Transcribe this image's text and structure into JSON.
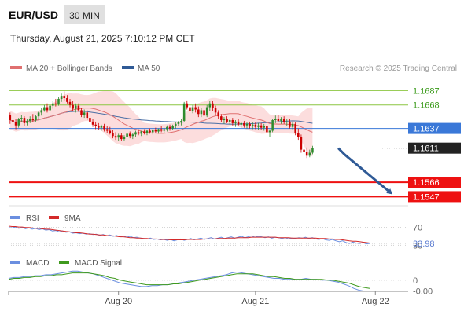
{
  "header": {
    "symbol": "EUR/USD",
    "timeframe": "30 MIN",
    "datetime": "Thursday, August 21, 2025 7:10:12 PM CET"
  },
  "legend": {
    "ma20_bb": "MA 20 + Bollinger Bands",
    "ma50": "MA 50",
    "credit": "Research © 2025 Trading Central"
  },
  "rsi_legend": {
    "rsi": "RSI",
    "ma9": "9MA"
  },
  "macd_legend": {
    "macd": "MACD",
    "signal": "MACD Signal"
  },
  "colors": {
    "up": "#2e8b2e",
    "down": "#cc0000",
    "ma20": "#e07070",
    "ma50": "#4a6fa5",
    "bb_fill": "#fbd5d5",
    "support": "#ee1111",
    "resistance": "#8cc640",
    "pivot": "#3a78d8",
    "current": "#222222",
    "arrow": "#2f5a96",
    "rsi": "#6b8fe0",
    "rsi_ma": "#d42a2a",
    "macd": "#6b8fe0",
    "macd_signal": "#3f9a1e"
  },
  "chart_data": [
    {
      "type": "candlestick",
      "title": "EUR/USD",
      "ylim": [
        1.1535,
        1.1705
      ],
      "x_ticks": [
        {
          "label": "Aug 20",
          "index": 38
        },
        {
          "label": "Aug 21",
          "index": 86
        },
        {
          "label": "Aug 22",
          "index": 128
        }
      ],
      "n_slots": 140,
      "candles": [
        [
          1.1655,
          1.1658,
          1.1643,
          1.1648
        ],
        [
          1.1648,
          1.1654,
          1.164,
          1.1645
        ],
        [
          1.1645,
          1.165,
          1.1636,
          1.1641
        ],
        [
          1.1641,
          1.1651,
          1.1638,
          1.1649
        ],
        [
          1.1649,
          1.1655,
          1.1645,
          1.1651
        ],
        [
          1.1651,
          1.1653,
          1.164,
          1.1644
        ],
        [
          1.1644,
          1.165,
          1.1641,
          1.1647
        ],
        [
          1.1647,
          1.1653,
          1.1644,
          1.165
        ],
        [
          1.165,
          1.1656,
          1.1645,
          1.1648
        ],
        [
          1.1648,
          1.1655,
          1.1646,
          1.1653
        ],
        [
          1.1653,
          1.166,
          1.165,
          1.1658
        ],
        [
          1.1658,
          1.1664,
          1.1654,
          1.1661
        ],
        [
          1.1661,
          1.1668,
          1.1659,
          1.1665
        ],
        [
          1.1665,
          1.167,
          1.1658,
          1.1661
        ],
        [
          1.1661,
          1.1668,
          1.166,
          1.1667
        ],
        [
          1.1667,
          1.1673,
          1.1663,
          1.167
        ],
        [
          1.167,
          1.1676,
          1.1666,
          1.1669
        ],
        [
          1.1669,
          1.1679,
          1.1667,
          1.1676
        ],
        [
          1.1676,
          1.1683,
          1.1672,
          1.168
        ],
        [
          1.168,
          1.1686,
          1.1674,
          1.1677
        ],
        [
          1.1677,
          1.1681,
          1.167,
          1.1672
        ],
        [
          1.1672,
          1.1676,
          1.1665,
          1.1668
        ],
        [
          1.1668,
          1.1673,
          1.166,
          1.1663
        ],
        [
          1.1663,
          1.167,
          1.1658,
          1.1667
        ],
        [
          1.1667,
          1.167,
          1.1659,
          1.1661
        ],
        [
          1.1661,
          1.1664,
          1.1652,
          1.1655
        ],
        [
          1.1655,
          1.1662,
          1.1651,
          1.1658
        ],
        [
          1.1658,
          1.1661,
          1.1648,
          1.1651
        ],
        [
          1.1651,
          1.1655,
          1.1643,
          1.1646
        ],
        [
          1.1646,
          1.165,
          1.1639,
          1.1642
        ],
        [
          1.1642,
          1.1646,
          1.1636,
          1.164
        ],
        [
          1.164,
          1.1644,
          1.1635,
          1.1638
        ],
        [
          1.1638,
          1.1642,
          1.1634,
          1.164
        ],
        [
          1.164,
          1.1643,
          1.1633,
          1.1636
        ],
        [
          1.1636,
          1.164,
          1.1631,
          1.1634
        ],
        [
          1.1634,
          1.1639,
          1.1629,
          1.1631
        ],
        [
          1.1631,
          1.1635,
          1.1624,
          1.1627
        ],
        [
          1.1627,
          1.1632,
          1.1622,
          1.1625
        ],
        [
          1.1625,
          1.163,
          1.162,
          1.1628
        ],
        [
          1.1628,
          1.1631,
          1.1621,
          1.1623
        ],
        [
          1.1623,
          1.1628,
          1.162,
          1.1626
        ],
        [
          1.1626,
          1.1632,
          1.1624,
          1.163
        ],
        [
          1.163,
          1.1633,
          1.1624,
          1.1627
        ],
        [
          1.1627,
          1.1631,
          1.1623,
          1.1629
        ],
        [
          1.1629,
          1.1634,
          1.1626,
          1.1632
        ],
        [
          1.1632,
          1.1636,
          1.1628,
          1.163
        ],
        [
          1.163,
          1.1634,
          1.1627,
          1.1633
        ],
        [
          1.1633,
          1.1636,
          1.1629,
          1.1631
        ],
        [
          1.1631,
          1.1635,
          1.1628,
          1.1634
        ],
        [
          1.1634,
          1.1637,
          1.163,
          1.1632
        ],
        [
          1.1632,
          1.1636,
          1.1629,
          1.1635
        ],
        [
          1.1635,
          1.1638,
          1.1631,
          1.1633
        ],
        [
          1.1633,
          1.1637,
          1.163,
          1.1636
        ],
        [
          1.1636,
          1.164,
          1.1632,
          1.1634
        ],
        [
          1.1634,
          1.1638,
          1.1631,
          1.1636
        ],
        [
          1.1636,
          1.1641,
          1.1633,
          1.1639
        ],
        [
          1.1639,
          1.1642,
          1.1634,
          1.1637
        ],
        [
          1.1637,
          1.1642,
          1.1635,
          1.164
        ],
        [
          1.164,
          1.1645,
          1.1637,
          1.1643
        ],
        [
          1.1643,
          1.1647,
          1.164,
          1.1645
        ],
        [
          1.1645,
          1.165,
          1.1641,
          1.1647
        ],
        [
          1.1647,
          1.1672,
          1.1645,
          1.167
        ],
        [
          1.167,
          1.1674,
          1.1662,
          1.1665
        ],
        [
          1.1665,
          1.1669,
          1.1656,
          1.166
        ],
        [
          1.166,
          1.1668,
          1.1657,
          1.1665
        ],
        [
          1.1665,
          1.167,
          1.1658,
          1.1662
        ],
        [
          1.1662,
          1.1666,
          1.1652,
          1.1656
        ],
        [
          1.1656,
          1.1664,
          1.1652,
          1.1661
        ],
        [
          1.1661,
          1.1665,
          1.165,
          1.1654
        ],
        [
          1.1654,
          1.1668,
          1.1652,
          1.1665
        ],
        [
          1.1665,
          1.1673,
          1.166,
          1.167
        ],
        [
          1.167,
          1.1673,
          1.166,
          1.1664
        ],
        [
          1.1664,
          1.1667,
          1.1654,
          1.1658
        ],
        [
          1.1658,
          1.1661,
          1.165,
          1.1653
        ],
        [
          1.1653,
          1.1656,
          1.1645,
          1.1648
        ],
        [
          1.1648,
          1.1652,
          1.1643,
          1.165
        ],
        [
          1.165,
          1.1653,
          1.1644,
          1.1646
        ],
        [
          1.1646,
          1.165,
          1.1642,
          1.1648
        ],
        [
          1.1648,
          1.1651,
          1.1641,
          1.1644
        ],
        [
          1.1644,
          1.1648,
          1.1639,
          1.1646
        ],
        [
          1.1646,
          1.1649,
          1.164,
          1.1642
        ],
        [
          1.1642,
          1.1646,
          1.1638,
          1.1644
        ],
        [
          1.1644,
          1.1647,
          1.1638,
          1.1641
        ],
        [
          1.1641,
          1.1645,
          1.1637,
          1.1643
        ],
        [
          1.1643,
          1.1646,
          1.1637,
          1.164
        ],
        [
          1.164,
          1.1645,
          1.1636,
          1.1642
        ],
        [
          1.1642,
          1.1645,
          1.1636,
          1.1639
        ],
        [
          1.1639,
          1.1644,
          1.1635,
          1.1641
        ],
        [
          1.1641,
          1.1644,
          1.1635,
          1.1638
        ],
        [
          1.1638,
          1.1643,
          1.1634,
          1.164
        ],
        [
          1.164,
          1.1643,
          1.1629,
          1.1632
        ],
        [
          1.1632,
          1.1636,
          1.1626,
          1.1634
        ],
        [
          1.1634,
          1.165,
          1.1632,
          1.1648
        ],
        [
          1.1648,
          1.1654,
          1.1644,
          1.165
        ],
        [
          1.165,
          1.1655,
          1.1646,
          1.1647
        ],
        [
          1.1647,
          1.1652,
          1.1643,
          1.1649
        ],
        [
          1.1649,
          1.1653,
          1.1643,
          1.1645
        ],
        [
          1.1645,
          1.165,
          1.164,
          1.1646
        ],
        [
          1.1646,
          1.1649,
          1.1637,
          1.1639
        ],
        [
          1.1639,
          1.1646,
          1.1636,
          1.1643
        ],
        [
          1.1643,
          1.1645,
          1.1628,
          1.1631
        ],
        [
          1.1631,
          1.1637,
          1.1622,
          1.1626
        ],
        [
          1.1626,
          1.1629,
          1.1605,
          1.1609
        ],
        [
          1.1609,
          1.1618,
          1.1603,
          1.1606
        ],
        [
          1.1606,
          1.1612,
          1.1598,
          1.1601
        ],
        [
          1.1601,
          1.1609,
          1.1599,
          1.1605
        ],
        [
          1.1605,
          1.1614,
          1.1603,
          1.1611
        ]
      ],
      "levels": [
        {
          "label": "1.1687",
          "value": 1.1687,
          "kind": "resistance"
        },
        {
          "label": "1.1668",
          "value": 1.1668,
          "kind": "resistance"
        },
        {
          "label": "1.1637",
          "value": 1.1637,
          "kind": "pivot"
        },
        {
          "label": "1.1611",
          "value": 1.1611,
          "kind": "current"
        },
        {
          "label": "1.1566",
          "value": 1.1566,
          "kind": "support"
        },
        {
          "label": "1.1547",
          "value": 1.1547,
          "kind": "support"
        }
      ],
      "arrow": {
        "from_index": 115,
        "from_value": 1.1611,
        "to_index": 134,
        "to_value": 1.155
      }
    },
    {
      "type": "line",
      "title": "RSI",
      "ylim": [
        20,
        80
      ],
      "series": [
        {
          "name": "RSI",
          "values": [
            70,
            69,
            71,
            68,
            70,
            67,
            69,
            66,
            68,
            65,
            67,
            64,
            65,
            62,
            63,
            60,
            62,
            59,
            60,
            57,
            58,
            56,
            57,
            55,
            56,
            54,
            55,
            52,
            54,
            51,
            53,
            50,
            52,
            49,
            51,
            48,
            50,
            47,
            48,
            46,
            45,
            44,
            46,
            43,
            44,
            42,
            43,
            41,
            43,
            40,
            42,
            44,
            41,
            43,
            45,
            42,
            44,
            46,
            43,
            45,
            47,
            44,
            46,
            48,
            45,
            47,
            49,
            46,
            48,
            50,
            47,
            49,
            51,
            48,
            50,
            49,
            47,
            49,
            46,
            48,
            47,
            45,
            47,
            44,
            46,
            45,
            47,
            46,
            48,
            45,
            47,
            44,
            43,
            45,
            42,
            41,
            43,
            40,
            38,
            40,
            36,
            34,
            37,
            35,
            34,
            36,
            33,
            34
          ]
        },
        {
          "name": "9MA",
          "values": [
            73,
            72,
            72,
            71,
            71,
            70,
            70,
            69,
            68,
            68,
            67,
            66,
            66,
            65,
            64,
            63,
            62,
            61,
            60,
            59,
            58,
            58,
            57,
            56,
            55,
            55,
            54,
            53,
            53,
            52,
            51,
            51,
            50,
            49,
            49,
            48,
            47,
            47,
            46,
            46,
            45,
            45,
            44,
            44,
            44,
            43,
            43,
            43,
            42,
            42,
            42,
            42,
            42,
            43,
            43,
            43,
            43,
            43,
            44,
            44,
            44,
            44,
            45,
            45,
            45,
            46,
            46,
            46,
            47,
            47,
            47,
            47,
            48,
            48,
            48,
            48,
            48,
            48,
            48,
            48,
            47,
            47,
            47,
            47,
            46,
            46,
            46,
            46,
            46,
            46,
            46,
            46,
            45,
            45,
            45,
            44,
            44,
            43,
            43,
            42,
            41,
            40,
            39,
            39,
            38,
            37,
            36,
            35
          ]
        }
      ],
      "levels": [
        {
          "label": "70",
          "value": 70
        },
        {
          "label": "30",
          "value": 30
        },
        {
          "label": "33.98",
          "value": 33.98
        }
      ]
    },
    {
      "type": "line",
      "title": "MACD",
      "ylim": [
        -0.0014,
        0.0012
      ],
      "series": [
        {
          "name": "MACD",
          "values": [
            0.0002,
            0.0003,
            0.0003,
            0.0004,
            0.0004,
            0.0005,
            0.0005,
            0.0006,
            0.0006,
            0.0007,
            0.0008,
            0.0009,
            0.001,
            0.001,
            0.0009,
            0.0008,
            0.0007,
            0.0005,
            0.0003,
            0.0001,
            -0.0001,
            -0.0003,
            -0.0004,
            -0.0005,
            -0.0006,
            -0.0007,
            -0.0007,
            -0.0006,
            -0.0006,
            -0.0005,
            -0.0005,
            -0.0004,
            -0.0003,
            -0.0002,
            -0.0001,
            0.0,
            0.0001,
            0.0002,
            0.0003,
            0.0004,
            0.0005,
            0.0006,
            0.0008,
            0.0009,
            0.0008,
            0.0007,
            0.0006,
            0.0005,
            0.0004,
            0.0003,
            0.0002,
            0.0002,
            0.0001,
            0.0001,
            0.0001,
            0.0001,
            0.0002,
            0.0001,
            0.0001,
            0.0,
            0.0,
            -0.0001,
            -0.0002,
            -0.0004,
            -0.0006,
            -0.0009,
            -0.0011,
            -0.0012,
            -0.0012
          ]
        },
        {
          "name": "MACD Signal",
          "values": [
            0.0001,
            0.0002,
            0.0002,
            0.0003,
            0.0003,
            0.0004,
            0.0004,
            0.0005,
            0.0005,
            0.0006,
            0.0006,
            0.0007,
            0.0008,
            0.0008,
            0.0008,
            0.0008,
            0.0007,
            0.0006,
            0.0005,
            0.0003,
            0.0002,
            0.0,
            -0.0001,
            -0.0002,
            -0.0003,
            -0.0004,
            -0.0005,
            -0.0005,
            -0.0005,
            -0.0005,
            -0.0005,
            -0.0004,
            -0.0004,
            -0.0003,
            -0.0002,
            -0.0001,
            0.0,
            0.0001,
            0.0002,
            0.0003,
            0.0004,
            0.0005,
            0.0006,
            0.0007,
            0.0007,
            0.0007,
            0.0007,
            0.0006,
            0.0005,
            0.0004,
            0.0004,
            0.0003,
            0.0002,
            0.0002,
            0.0001,
            0.0001,
            0.0001,
            0.0001,
            0.0001,
            0.0001,
            0.0,
            0.0,
            -0.0001,
            -0.0002,
            -0.0003,
            -0.0005,
            -0.0007,
            -0.0008,
            -0.0009
          ]
        }
      ],
      "levels": [
        {
          "label": "0",
          "value": 0
        },
        {
          "label": "-0.00",
          "value": -0.0012
        }
      ]
    }
  ]
}
